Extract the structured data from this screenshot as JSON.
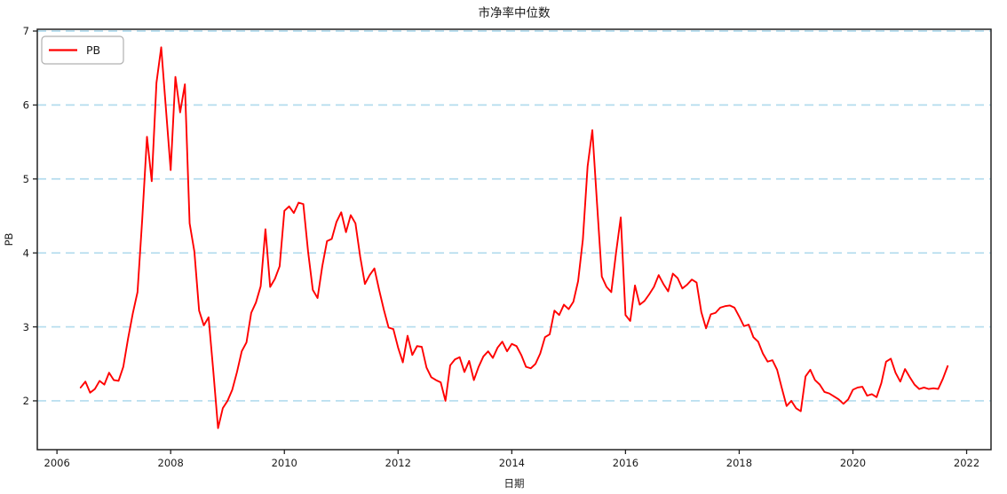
{
  "chart": {
    "title": "市净率中位数",
    "xlabel": "日期",
    "ylabel": "PB",
    "legend_label": "PB"
  },
  "colors": {
    "line": "#ff0000",
    "grid": "#b3dcee",
    "axis": "#222222",
    "background": "#ffffff",
    "legend_border": "#b0b0b0",
    "legend_fill": "#ffffff"
  },
  "chart_data": {
    "type": "line",
    "title": "市净率中位数",
    "xlabel": "日期",
    "ylabel": "PB",
    "legend": [
      "PB"
    ],
    "legend_position": "upper left",
    "grid": "horizontal dashed lightblue",
    "x_ticks": [
      2006,
      2008,
      2010,
      2012,
      2014,
      2016,
      2018,
      2020,
      2022
    ],
    "y_ticks": [
      2,
      3,
      4,
      5,
      6,
      7
    ],
    "xlim": [
      2005.654,
      2022.429
    ],
    "ylim": [
      1.34,
      7.024
    ],
    "series": [
      {
        "name": "PB",
        "start": "2006-05",
        "freq": "monthly",
        "values": [
          2.18,
          2.26,
          2.11,
          2.16,
          2.27,
          2.22,
          2.38,
          2.28,
          2.27,
          2.46,
          2.84,
          3.18,
          3.47,
          4.46,
          5.57,
          4.97,
          6.3,
          6.78,
          5.95,
          5.12,
          6.38,
          5.9,
          6.28,
          4.4,
          4.02,
          3.22,
          3.02,
          3.13,
          2.4,
          1.63,
          1.9,
          2.0,
          2.15,
          2.39,
          2.67,
          2.79,
          3.19,
          3.33,
          3.55,
          4.32,
          3.54,
          3.65,
          3.82,
          4.57,
          4.63,
          4.54,
          4.68,
          4.66,
          4.02,
          3.5,
          3.39,
          3.82,
          4.16,
          4.19,
          4.42,
          4.55,
          4.28,
          4.51,
          4.4,
          3.95,
          3.58,
          3.7,
          3.79,
          3.5,
          3.23,
          2.99,
          2.97,
          2.72,
          2.52,
          2.88,
          2.62,
          2.74,
          2.73,
          2.45,
          2.32,
          2.28,
          2.25,
          2.0,
          2.48,
          2.56,
          2.59,
          2.39,
          2.54,
          2.28,
          2.46,
          2.6,
          2.67,
          2.58,
          2.72,
          2.8,
          2.67,
          2.77,
          2.74,
          2.62,
          2.46,
          2.44,
          2.5,
          2.64,
          2.86,
          2.9,
          3.22,
          3.16,
          3.3,
          3.24,
          3.34,
          3.62,
          4.18,
          5.17,
          5.66,
          4.66,
          3.68,
          3.54,
          3.47,
          4.0,
          4.48,
          3.16,
          3.08,
          3.56,
          3.3,
          3.35,
          3.44,
          3.54,
          3.7,
          3.58,
          3.48,
          3.72,
          3.66,
          3.52,
          3.57,
          3.64,
          3.6,
          3.2,
          2.98,
          3.17,
          3.19,
          3.26,
          3.28,
          3.29,
          3.26,
          3.14,
          3.01,
          3.03,
          2.86,
          2.8,
          2.64,
          2.53,
          2.55,
          2.42,
          2.17,
          1.93,
          2.0,
          1.9,
          1.86,
          2.33,
          2.42,
          2.28,
          2.22,
          2.12,
          2.1,
          2.06,
          2.02,
          1.96,
          2.02,
          2.15,
          2.18,
          2.19,
          2.07,
          2.09,
          2.05,
          2.24,
          2.53,
          2.57,
          2.38,
          2.26,
          2.43,
          2.32,
          2.22,
          2.16,
          2.18,
          2.16,
          2.17,
          2.16,
          2.3,
          2.47
        ]
      }
    ]
  }
}
